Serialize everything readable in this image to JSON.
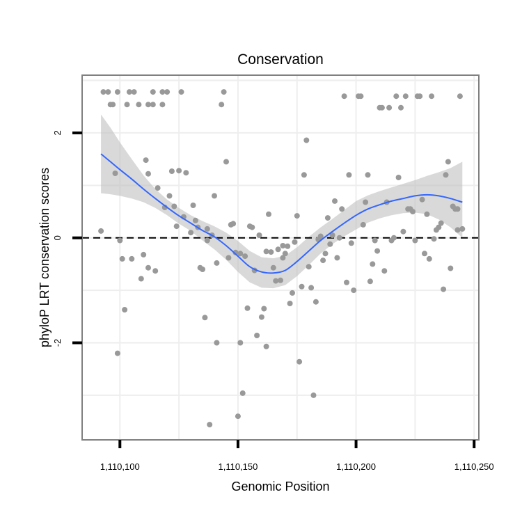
{
  "chart_data": {
    "type": "scatter",
    "title": "Conservation",
    "xlabel": "Genomic Position",
    "ylabel": "phyloP LRT conservation scores",
    "xlim": [
      1110084,
      1110252
    ],
    "ylim": [
      -3.85,
      3.1
    ],
    "x_ticks": [
      {
        "value": 1110100,
        "label": "1,110,100"
      },
      {
        "value": 1110150,
        "label": "1,110,150"
      },
      {
        "value": 1110200,
        "label": "1,110,200"
      },
      {
        "value": 1110250,
        "label": "1,110,250"
      }
    ],
    "y_ticks": [
      {
        "value": -2,
        "label": "-2"
      },
      {
        "value": 0,
        "label": "0"
      },
      {
        "value": 2,
        "label": "2"
      }
    ],
    "reference_line": {
      "y": 0,
      "style": "dashed"
    },
    "points": [
      [
        1110093,
        2.78
      ],
      [
        1110095,
        2.78
      ],
      [
        1110096,
        2.54
      ],
      [
        1110097,
        2.54
      ],
      [
        1110099,
        2.78
      ],
      [
        1110104,
        2.78
      ],
      [
        1110103,
        2.54
      ],
      [
        1110106,
        2.78
      ],
      [
        1110108,
        2.54
      ],
      [
        1110112,
        2.54
      ],
      [
        1110114,
        2.54
      ],
      [
        1110114,
        2.78
      ],
      [
        1110118,
        2.54
      ],
      [
        1110118,
        2.78
      ],
      [
        1110120,
        2.78
      ],
      [
        1110126,
        2.78
      ],
      [
        1110143,
        2.54
      ],
      [
        1110144,
        2.78
      ],
      [
        1110092,
        0.13
      ],
      [
        1110098,
        1.23
      ],
      [
        1110100,
        -0.05
      ],
      [
        1110101,
        -0.4
      ],
      [
        1110102,
        -1.37
      ],
      [
        1110099,
        -2.2
      ],
      [
        1110105,
        -0.4
      ],
      [
        1110109,
        -0.78
      ],
      [
        1110110,
        -0.32
      ],
      [
        1110111,
        1.48
      ],
      [
        1110112,
        -0.57
      ],
      [
        1110112,
        1.22
      ],
      [
        1110115,
        -0.63
      ],
      [
        1110116,
        0.95
      ],
      [
        1110119,
        0.58
      ],
      [
        1110121,
        0.8
      ],
      [
        1110122,
        1.27
      ],
      [
        1110123,
        0.6
      ],
      [
        1110124,
        0.22
      ],
      [
        1110125,
        1.28
      ],
      [
        1110127,
        0.4
      ],
      [
        1110128,
        1.24
      ],
      [
        1110130,
        0.1
      ],
      [
        1110131,
        0.62
      ],
      [
        1110132,
        0.33
      ],
      [
        1110133,
        0.2
      ],
      [
        1110134,
        -0.57
      ],
      [
        1110135,
        -0.6
      ],
      [
        1110136,
        -1.52
      ],
      [
        1110137,
        0.17
      ],
      [
        1110137,
        -0.05
      ],
      [
        1110139,
        0.05
      ],
      [
        1110140,
        0.8
      ],
      [
        1110141,
        -0.48
      ],
      [
        1110141,
        -2.0
      ],
      [
        1110138,
        -3.56
      ],
      [
        1110145,
        1.45
      ],
      [
        1110146,
        -0.38
      ],
      [
        1110147,
        0.25
      ],
      [
        1110148,
        0.27
      ],
      [
        1110149,
        -0.28
      ],
      [
        1110150,
        -3.4
      ],
      [
        1110151,
        -0.3
      ],
      [
        1110151,
        -2.0
      ],
      [
        1110152,
        -2.96
      ],
      [
        1110153,
        -0.35
      ],
      [
        1110155,
        0.22
      ],
      [
        1110156,
        0.2
      ],
      [
        1110154,
        -1.34
      ],
      [
        1110157,
        -0.62
      ],
      [
        1110158,
        -1.86
      ],
      [
        1110159,
        0.05
      ],
      [
        1110160,
        -1.51
      ],
      [
        1110161,
        -1.35
      ],
      [
        1110162,
        -2.07
      ],
      [
        1110162,
        -0.26
      ],
      [
        1110163,
        0.45
      ],
      [
        1110164,
        -0.27
      ],
      [
        1110165,
        -0.57
      ],
      [
        1110166,
        -0.82
      ],
      [
        1110167,
        -0.22
      ],
      [
        1110168,
        -0.81
      ],
      [
        1110169,
        -0.15
      ],
      [
        1110169,
        -0.38
      ],
      [
        1110170,
        -0.3
      ],
      [
        1110171,
        -0.16
      ],
      [
        1110172,
        -1.25
      ],
      [
        1110173,
        -1.05
      ],
      [
        1110174,
        -0.08
      ],
      [
        1110175,
        0.42
      ],
      [
        1110176,
        -2.36
      ],
      [
        1110177,
        -0.93
      ],
      [
        1110178,
        1.2
      ],
      [
        1110179,
        1.86
      ],
      [
        1110180,
        -0.55
      ],
      [
        1110181,
        -0.95
      ],
      [
        1110182,
        -3.0
      ],
      [
        1110183,
        -1.22
      ],
      [
        1110184,
        -0.03
      ],
      [
        1110185,
        0.03
      ],
      [
        1110186,
        -0.43
      ],
      [
        1110187,
        -0.3
      ],
      [
        1110188,
        0.38
      ],
      [
        1110189,
        -0.12
      ],
      [
        1110190,
        0.05
      ],
      [
        1110191,
        0.7
      ],
      [
        1110192,
        -0.38
      ],
      [
        1110193,
        0.0
      ],
      [
        1110194,
        0.55
      ],
      [
        1110195,
        2.7
      ],
      [
        1110196,
        -0.85
      ],
      [
        1110197,
        1.2
      ],
      [
        1110198,
        -0.1
      ],
      [
        1110199,
        -1.0
      ],
      [
        1110201,
        2.7
      ],
      [
        1110202,
        2.7
      ],
      [
        1110203,
        0.25
      ],
      [
        1110204,
        0.68
      ],
      [
        1110205,
        1.2
      ],
      [
        1110206,
        -0.83
      ],
      [
        1110207,
        -0.5
      ],
      [
        1110208,
        -0.05
      ],
      [
        1110209,
        -0.25
      ],
      [
        1110210,
        2.48
      ],
      [
        1110211,
        2.48
      ],
      [
        1110212,
        -0.63
      ],
      [
        1110213,
        0.68
      ],
      [
        1110214,
        2.48
      ],
      [
        1110215,
        -0.05
      ],
      [
        1110216,
        0.0
      ],
      [
        1110217,
        2.7
      ],
      [
        1110218,
        1.15
      ],
      [
        1110219,
        2.48
      ],
      [
        1110220,
        0.12
      ],
      [
        1110221,
        2.7
      ],
      [
        1110222,
        0.55
      ],
      [
        1110223,
        0.55
      ],
      [
        1110224,
        0.5
      ],
      [
        1110225,
        -0.05
      ],
      [
        1110226,
        2.7
      ],
      [
        1110227,
        2.7
      ],
      [
        1110228,
        0.73
      ],
      [
        1110229,
        -0.3
      ],
      [
        1110230,
        0.45
      ],
      [
        1110231,
        -0.4
      ],
      [
        1110232,
        2.7
      ],
      [
        1110233,
        -0.02
      ],
      [
        1110234,
        0.15
      ],
      [
        1110235,
        0.2
      ],
      [
        1110236,
        0.28
      ],
      [
        1110237,
        -0.98
      ],
      [
        1110238,
        1.2
      ],
      [
        1110239,
        1.45
      ],
      [
        1110240,
        -0.58
      ],
      [
        1110241,
        0.6
      ],
      [
        1110242,
        0.55
      ],
      [
        1110243,
        0.15
      ],
      [
        1110243,
        0.55
      ],
      [
        1110244,
        2.7
      ],
      [
        1110245,
        0.17
      ]
    ],
    "smooth_line": {
      "color": "#3366ff",
      "x": [
        1110092,
        1110096,
        1110100,
        1110105,
        1110110,
        1110115,
        1110120,
        1110125,
        1110130,
        1110135,
        1110140,
        1110145,
        1110150,
        1110155,
        1110160,
        1110165,
        1110170,
        1110175,
        1110180,
        1110185,
        1110190,
        1110195,
        1110200,
        1110205,
        1110210,
        1110215,
        1110220,
        1110225,
        1110230,
        1110235,
        1110240,
        1110245
      ],
      "y": [
        1.6,
        1.45,
        1.3,
        1.12,
        0.93,
        0.75,
        0.58,
        0.42,
        0.28,
        0.14,
        0.02,
        -0.15,
        -0.35,
        -0.55,
        -0.65,
        -0.67,
        -0.62,
        -0.45,
        -0.25,
        -0.05,
        0.12,
        0.28,
        0.43,
        0.55,
        0.63,
        0.7,
        0.75,
        0.8,
        0.82,
        0.8,
        0.75,
        0.68
      ]
    },
    "confidence_band": {
      "color": "#bfbfbf",
      "lower": [
        0.85,
        0.83,
        0.8,
        0.75,
        0.68,
        0.57,
        0.43,
        0.27,
        0.13,
        -0.05,
        -0.22,
        -0.42,
        -0.65,
        -0.85,
        -0.95,
        -0.96,
        -0.9,
        -0.73,
        -0.52,
        -0.3,
        -0.12,
        0.03,
        0.16,
        0.29,
        0.37,
        0.43,
        0.47,
        0.48,
        0.45,
        0.35,
        0.2,
        0.0
      ],
      "upper": [
        2.35,
        2.1,
        1.82,
        1.5,
        1.19,
        0.93,
        0.73,
        0.57,
        0.43,
        0.32,
        0.22,
        0.1,
        -0.06,
        -0.25,
        -0.37,
        -0.39,
        -0.34,
        -0.18,
        0.02,
        0.2,
        0.36,
        0.53,
        0.7,
        0.81,
        0.89,
        0.96,
        1.03,
        1.1,
        1.18,
        1.25,
        1.33,
        1.45
      ]
    },
    "point_color": "#999999",
    "grid": true,
    "legend": "none"
  }
}
